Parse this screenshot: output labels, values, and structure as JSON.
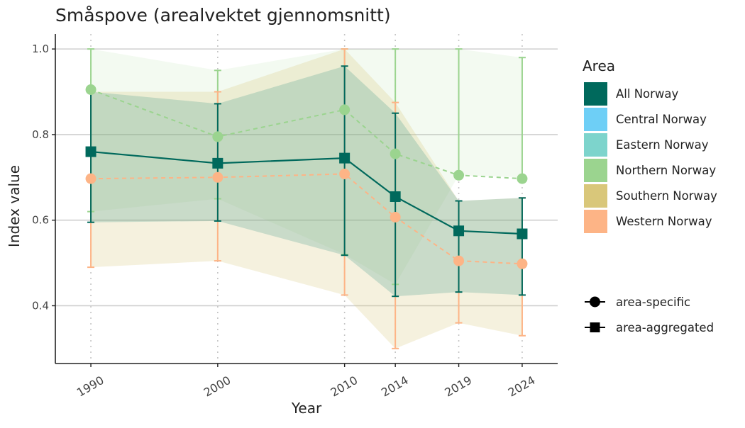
{
  "chart_data": {
    "type": "line",
    "title": "Småspove (arealvektet gjennomsnitt)",
    "xlabel": "Year",
    "ylabel": "Index value",
    "x": [
      1990,
      2000,
      2010,
      2014,
      2019,
      2024
    ],
    "x_tick_labels": [
      "1990",
      "2000",
      "2010",
      "2014",
      "2019",
      "2024"
    ],
    "ylim": [
      0.265,
      1.035
    ],
    "y_ticks": [
      0.4,
      0.6,
      0.8,
      1.0
    ],
    "y_tick_labels": [
      "0.4",
      "0.6",
      "0.8",
      "1.0"
    ],
    "grid": "horizontal major lines; dotted vertical lines at data years",
    "legend_placement": "right",
    "legend": {
      "title": "Area",
      "items": [
        {
          "label": "All Norway",
          "color": "#00695C"
        },
        {
          "label": "Central Norway",
          "color": "#6ECFF6"
        },
        {
          "label": "Eastern Norway",
          "color": "#7DD4CC"
        },
        {
          "label": "Northern Norway",
          "color": "#9BD48F"
        },
        {
          "label": "Southern Norway",
          "color": "#D9C77A"
        },
        {
          "label": "Western Norway",
          "color": "#FDB486"
        }
      ],
      "shape_items": [
        {
          "label": "area-specific",
          "shape": "circle"
        },
        {
          "label": "area-aggregated",
          "shape": "square"
        }
      ]
    },
    "bands": [
      {
        "name": "Northern Norway",
        "color": "#9BD48F",
        "opacity": 0.12,
        "lower": [
          0.62,
          0.65,
          0.52,
          0.45,
          0.705,
          0.7
        ],
        "upper": [
          1.0,
          0.95,
          1.0,
          1.0,
          1.0,
          0.98
        ]
      },
      {
        "name": "Western Norway",
        "color": "#D9C77A",
        "opacity": 0.25,
        "lower": [
          0.49,
          0.505,
          0.425,
          0.3,
          0.36,
          0.33
        ],
        "upper": [
          0.9,
          0.9,
          1.0,
          0.875,
          0.645,
          0.652
        ]
      },
      {
        "name": "All Norway",
        "color": "#2E8B7E",
        "opacity": 0.22,
        "lower": [
          0.595,
          0.598,
          0.518,
          0.422,
          0.432,
          0.425
        ],
        "upper": [
          0.9,
          0.872,
          0.96,
          0.85,
          0.645,
          0.652
        ]
      }
    ],
    "series": [
      {
        "name": "Northern Norway",
        "kind": "area-specific",
        "marker": "circle",
        "line": "dashed",
        "color": "#9BD48F",
        "values": [
          0.905,
          0.795,
          0.858,
          0.755,
          0.705,
          0.697
        ],
        "lower": [
          0.62,
          0.65,
          0.52,
          0.45,
          0.705,
          0.7
        ],
        "upper": [
          1.0,
          0.95,
          1.0,
          1.0,
          1.0,
          0.98
        ]
      },
      {
        "name": "Western Norway",
        "kind": "area-specific",
        "marker": "circle",
        "line": "dashed",
        "color": "#FDB486",
        "values": [
          0.697,
          0.7,
          0.708,
          0.607,
          0.505,
          0.498
        ],
        "lower": [
          0.49,
          0.505,
          0.425,
          0.3,
          0.36,
          0.33
        ],
        "upper": [
          0.9,
          0.9,
          1.0,
          0.875,
          0.645,
          0.652
        ]
      },
      {
        "name": "All Norway",
        "kind": "area-aggregated",
        "marker": "square",
        "line": "solid",
        "color": "#00695C",
        "values": [
          0.76,
          0.733,
          0.745,
          0.655,
          0.575,
          0.568
        ],
        "lower": [
          0.595,
          0.598,
          0.518,
          0.422,
          0.432,
          0.425
        ],
        "upper": [
          0.9,
          0.872,
          0.96,
          0.85,
          0.645,
          0.652
        ]
      }
    ]
  }
}
